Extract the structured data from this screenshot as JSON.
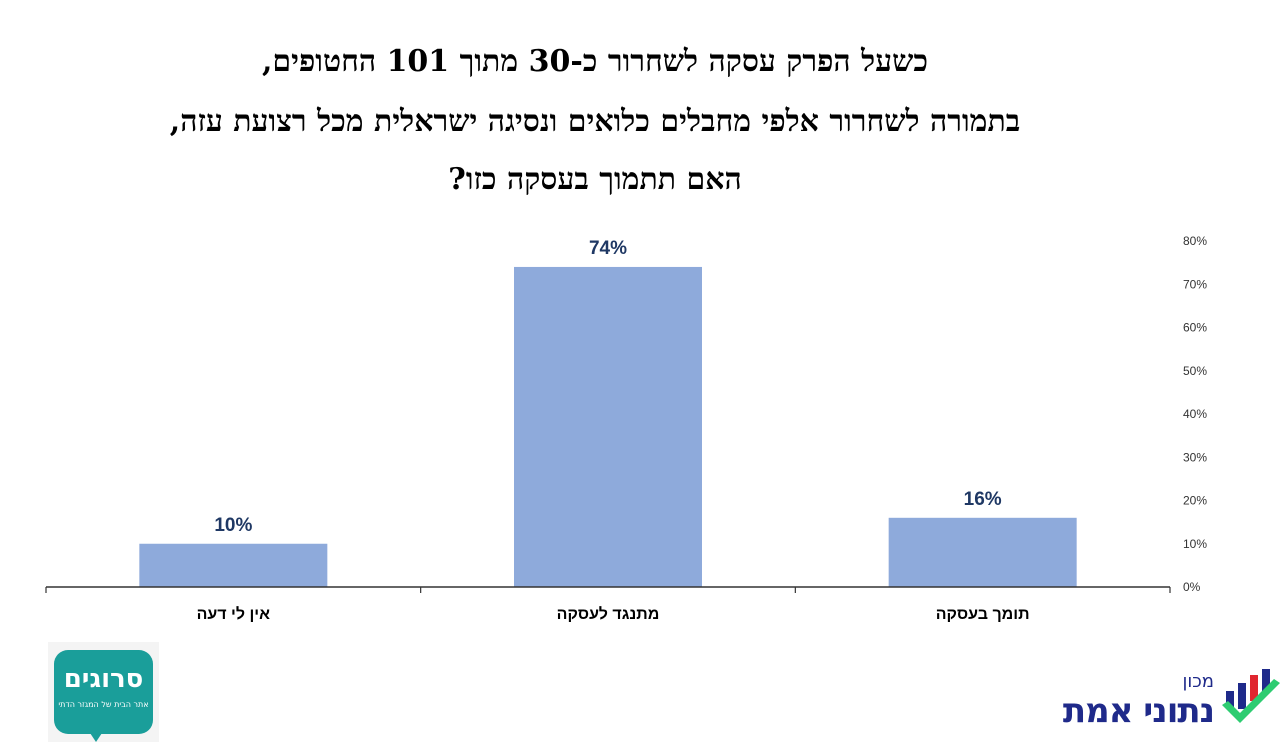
{
  "title": {
    "line1": "כשעל הפרק עסקה לשחרור כ-30 מתוך 101 החטופים,",
    "line2": "בתמורה לשחרור אלפי מחבלים כלואים ונסיגה ישראלית מכל רצועת עזה,",
    "line3": "האם תתמוך בעסקה כזו?"
  },
  "chart_data": {
    "type": "bar",
    "categories": [
      "אין לי דעה",
      "מתנגד לעסקה",
      "תומך בעסקה"
    ],
    "values": [
      10,
      74,
      16
    ],
    "data_labels": [
      "10%",
      "74%",
      "16%"
    ],
    "ylim": [
      0,
      80
    ],
    "yticks": [
      "0%",
      "10%",
      "20%",
      "30%",
      "40%",
      "50%",
      "60%",
      "70%",
      "80%"
    ],
    "y_axis_position": "right",
    "grid": false,
    "bar_color": "#8eaadb",
    "label_color": "#1f3864"
  },
  "logos": {
    "left_main": "סרוגים",
    "left_sub": "אתר הבית של המגזר הדתי",
    "right_small": "מכון",
    "right_main": "נתוני אמת"
  }
}
